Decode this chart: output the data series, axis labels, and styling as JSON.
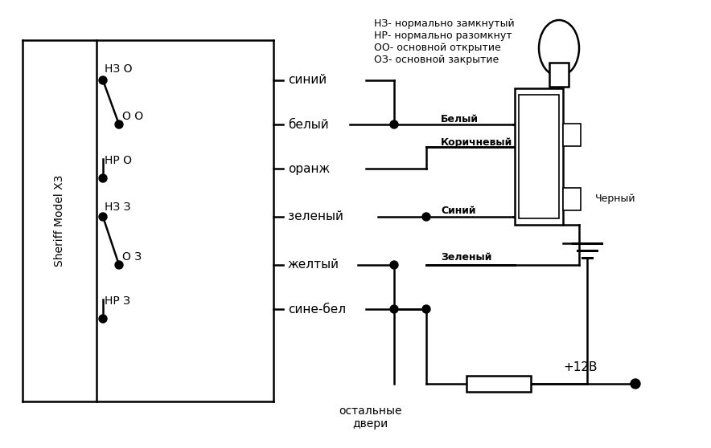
{
  "bg_color": "#ffffff",
  "legend_text": "НЗ- нормально замкнутый\nНР- нормально разомкнут\nОО- основной открытие\nОЗ- основной закрытие",
  "sheriff_label": "Sheriff Model X3",
  "wire_labels": [
    "синий",
    "белый",
    "оранж",
    "зеленый",
    "желтый",
    "сине-бел"
  ],
  "connector_labels": [
    "Белый",
    "Коричневый",
    "Синий",
    "Зеленый"
  ],
  "ground_label": "Черный",
  "power_label": "+12В",
  "bottom_label": "остальные\nдвери"
}
